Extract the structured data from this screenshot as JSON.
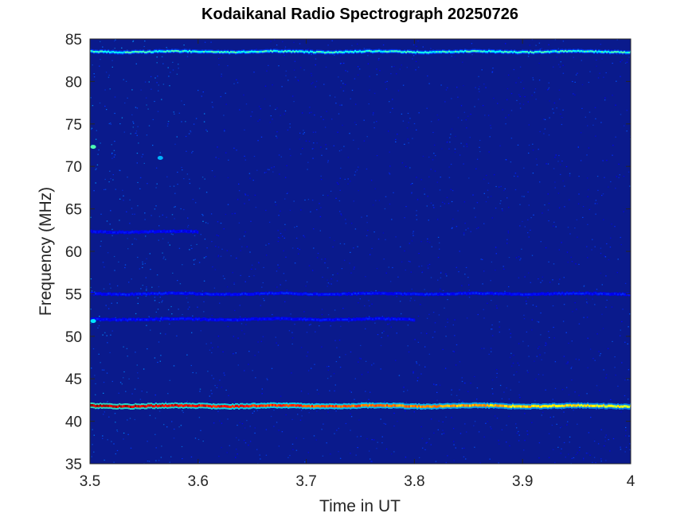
{
  "chart_data": {
    "type": "heatmap",
    "title": "Kodaikanal Radio Spectrograph  20250726",
    "xlabel": "Time in UT",
    "ylabel": "Frequency (MHz)",
    "xlim": [
      3.5,
      4.0
    ],
    "ylim": [
      35,
      85
    ],
    "xticks": [
      3.5,
      3.6,
      3.7,
      3.8,
      3.9,
      4.0
    ],
    "xtick_labels": [
      "3.5",
      "3.6",
      "3.7",
      "3.8",
      "3.9",
      "4"
    ],
    "yticks": [
      35,
      40,
      45,
      50,
      55,
      60,
      65,
      70,
      75,
      80,
      85
    ],
    "ytick_labels": [
      "35",
      "40",
      "45",
      "50",
      "55",
      "60",
      "65",
      "70",
      "75",
      "80",
      "85"
    ],
    "colormap": "jet",
    "background_color": "#0a1a8c",
    "grid": false,
    "features": [
      {
        "type": "band",
        "freq": 83.5,
        "t_start": 3.5,
        "t_end": 4.0,
        "intensity": 0.4
      },
      {
        "type": "band",
        "freq": 41.8,
        "t_start": 3.5,
        "t_end": 4.0,
        "intensity_start": 0.95,
        "intensity_end": 0.6
      },
      {
        "type": "band",
        "freq": 55.0,
        "t_start": 3.5,
        "t_end": 4.0,
        "intensity": 0.16
      },
      {
        "type": "band",
        "freq": 52.0,
        "t_start": 3.5,
        "t_end": 3.8,
        "intensity": 0.14
      },
      {
        "type": "band",
        "freq": 62.3,
        "t_start": 3.5,
        "t_end": 3.6,
        "intensity": 0.13
      },
      {
        "type": "spot",
        "time": 3.503,
        "freq": 72.3,
        "intensity": 0.45
      },
      {
        "type": "spot",
        "time": 3.565,
        "freq": 71.0,
        "intensity": 0.3
      },
      {
        "type": "spot",
        "time": 3.503,
        "freq": 51.8,
        "intensity": 0.35
      }
    ]
  }
}
